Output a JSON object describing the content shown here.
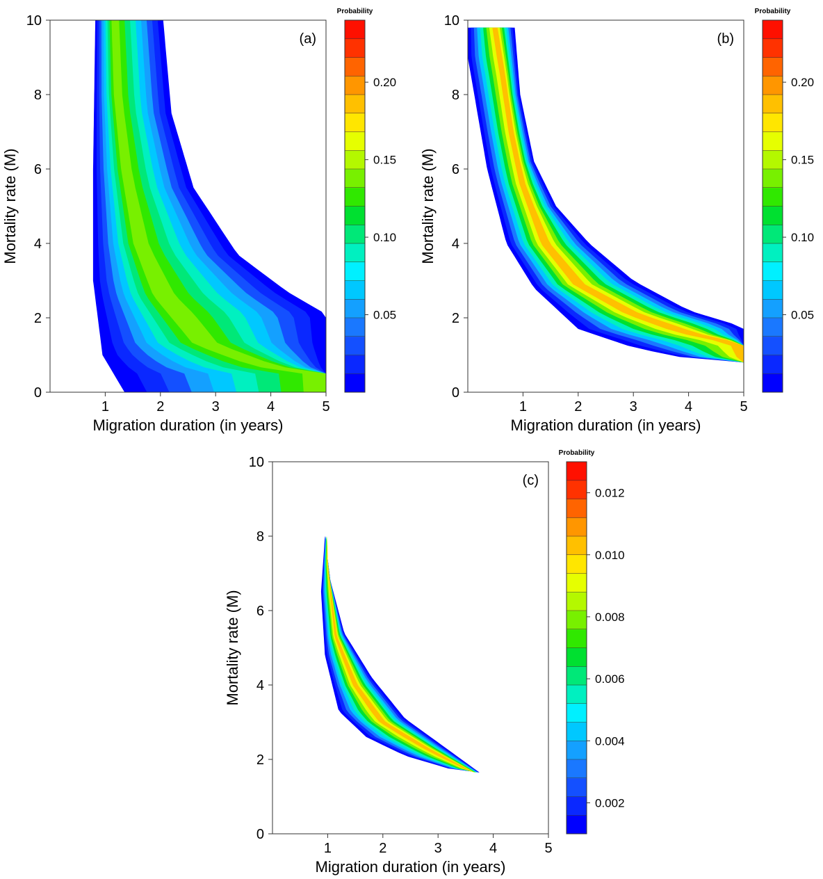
{
  "chart_data": [
    {
      "type": "contour",
      "panel_label": "(a)",
      "xlabel": "Migration duration (in years)",
      "ylabel": "Mortality rate (M)",
      "xlim": [
        0,
        5
      ],
      "ylim": [
        0,
        10
      ],
      "xticks": [
        1,
        2,
        3,
        4,
        5
      ],
      "yticks": [
        0,
        2,
        4,
        6,
        8,
        10
      ],
      "colorbar": {
        "title": "Probability",
        "min": 0.0,
        "max": 0.24,
        "ticks": [
          0.05,
          0.1,
          0.15,
          0.2
        ],
        "tick_labels": [
          "0.05",
          "0.10",
          "0.15",
          "0.20"
        ]
      },
      "ridge": [
        [
          1.15,
          10
        ],
        [
          1.2,
          8
        ],
        [
          1.35,
          6
        ],
        [
          1.6,
          4
        ],
        [
          2.0,
          2.6
        ],
        [
          2.8,
          1.3
        ],
        [
          4.0,
          0.7
        ],
        [
          5.0,
          0.5
        ]
      ],
      "peak_probability": 0.17,
      "support_inner": [
        [
          0.82,
          10
        ],
        [
          0.78,
          6
        ],
        [
          0.78,
          3
        ],
        [
          0.95,
          1.0
        ],
        [
          1.35,
          0
        ]
      ],
      "support_outer": [
        [
          2.05,
          10
        ],
        [
          2.2,
          7.5
        ],
        [
          2.6,
          5.5
        ],
        [
          3.4,
          3.7
        ],
        [
          4.3,
          2.7
        ],
        [
          5.0,
          2.1
        ]
      ],
      "grid": false
    },
    {
      "type": "contour",
      "panel_label": "(b)",
      "xlabel": "Migration duration (in years)",
      "ylabel": "Mortality rate (M)",
      "xlim": [
        0,
        5
      ],
      "ylim": [
        0,
        10
      ],
      "xticks": [
        1,
        2,
        3,
        4,
        5
      ],
      "yticks": [
        0,
        2,
        4,
        6,
        8,
        10
      ],
      "colorbar": {
        "title": "Probability",
        "min": 0.0,
        "max": 0.24,
        "ticks": [
          0.05,
          0.1,
          0.15,
          0.2
        ],
        "tick_labels": [
          "0.05",
          "0.10",
          "0.15",
          "0.20"
        ]
      },
      "ridge": [
        [
          0.5,
          9.8
        ],
        [
          0.65,
          8.5
        ],
        [
          0.8,
          7
        ],
        [
          1.0,
          5.6
        ],
        [
          1.4,
          4.0
        ],
        [
          2.0,
          2.9
        ],
        [
          3.0,
          2.1
        ],
        [
          4.0,
          1.6
        ],
        [
          5.0,
          1.3
        ]
      ],
      "peak_probability": 0.23,
      "support_inner": [
        [
          0.0,
          9.8
        ],
        [
          0.0,
          9.0
        ],
        [
          0.35,
          6
        ],
        [
          0.7,
          4
        ],
        [
          1.2,
          2.8
        ],
        [
          2.0,
          1.7
        ],
        [
          3.0,
          1.2
        ],
        [
          4.0,
          0.9
        ],
        [
          5.0,
          0.8
        ]
      ],
      "support_outer": [
        [
          0.85,
          9.8
        ],
        [
          0.95,
          8
        ],
        [
          1.2,
          6.2
        ],
        [
          1.6,
          5
        ],
        [
          2.2,
          4
        ],
        [
          3.0,
          3.0
        ],
        [
          4.0,
          2.2
        ],
        [
          5.0,
          1.75
        ]
      ],
      "grid": false
    },
    {
      "type": "contour",
      "panel_label": "(c)",
      "xlabel": "Migration duration (in years)",
      "ylabel": "Mortality rate (M)",
      "xlim": [
        0,
        5
      ],
      "ylim": [
        0,
        10
      ],
      "xticks": [
        1,
        2,
        3,
        4,
        5
      ],
      "yticks": [
        0,
        2,
        4,
        6,
        8,
        10
      ],
      "colorbar": {
        "title": "Probability",
        "min": 0.001,
        "max": 0.013,
        "ticks": [
          0.002,
          0.004,
          0.006,
          0.008,
          0.01,
          0.012
        ],
        "tick_labels": [
          "0.002",
          "0.004",
          "0.006",
          "0.008",
          "0.010",
          "0.012"
        ]
      },
      "ridge": [
        [
          1.0,
          7.3
        ],
        [
          1.15,
          5.3
        ],
        [
          1.5,
          4.0
        ],
        [
          2.0,
          3.0
        ],
        [
          2.8,
          2.3
        ],
        [
          3.7,
          1.6
        ]
      ],
      "peak_probability": 0.0125,
      "peak_location": [
        1.5,
        4.0
      ],
      "support_inner": [
        [
          0.95,
          8.0
        ],
        [
          0.88,
          6.5
        ],
        [
          0.95,
          4.8
        ],
        [
          1.2,
          3.3
        ],
        [
          1.7,
          2.6
        ],
        [
          2.4,
          2.1
        ],
        [
          3.2,
          1.75
        ],
        [
          3.75,
          1.65
        ]
      ],
      "support_outer": [
        [
          0.95,
          8.0
        ],
        [
          1.05,
          6.8
        ],
        [
          1.3,
          5.4
        ],
        [
          1.8,
          4.2
        ],
        [
          2.4,
          3.1
        ],
        [
          3.1,
          2.35
        ],
        [
          3.75,
          1.65
        ]
      ],
      "grid": false
    }
  ],
  "colormap": [
    "#0000ff",
    "#0a28ff",
    "#1450ff",
    "#1a78ff",
    "#14a0ff",
    "#00c8ff",
    "#00f0ff",
    "#00f0c0",
    "#00e878",
    "#00e030",
    "#30e800",
    "#78f000",
    "#b4f800",
    "#e6ff00",
    "#ffe600",
    "#ffc000",
    "#ff9600",
    "#ff6400",
    "#ff3200",
    "#ff1000"
  ],
  "colorbar_bands": 20
}
